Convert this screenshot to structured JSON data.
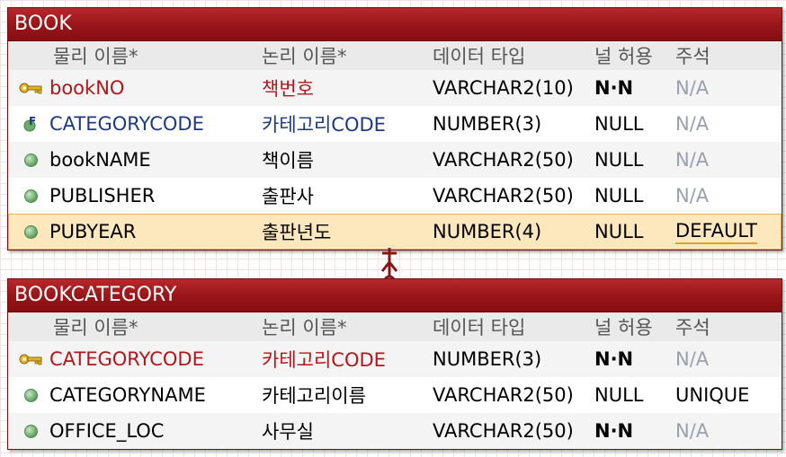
{
  "colors": {
    "title_bar": "#9a161a",
    "pk_text": "#b0171d",
    "fk_text": "#1d3a80",
    "selected_row": "#fde7bd"
  },
  "columns": [
    "물리 이름*",
    "논리 이름*",
    "데이터 타입",
    "널 허용",
    "주석"
  ],
  "entities": [
    {
      "name": "BOOK",
      "attributes": [
        {
          "physical": "bookNO",
          "logical": "책번호",
          "type": "VARCHAR2(10)",
          "nullable": "N·N",
          "note": "N/A"
        },
        {
          "physical": "CATEGORYCODE",
          "logical": "카테고리CODE",
          "type": "NUMBER(3)",
          "nullable": "NULL",
          "note": "N/A"
        },
        {
          "physical": "bookNAME",
          "logical": "책이름",
          "type": "VARCHAR2(50)",
          "nullable": "NULL",
          "note": "N/A"
        },
        {
          "physical": "PUBLISHER",
          "logical": "출판사",
          "type": "VARCHAR2(50)",
          "nullable": "NULL",
          "note": "N/A"
        },
        {
          "physical": "PUBYEAR",
          "logical": "출판년도",
          "type": "NUMBER(4)",
          "nullable": "NULL",
          "note": "DEFAULT"
        }
      ]
    },
    {
      "name": "BOOKCATEGORY",
      "attributes": [
        {
          "physical": "CATEGORYCODE",
          "logical": "카테고리CODE",
          "type": "NUMBER(3)",
          "nullable": "N·N",
          "note": "N/A"
        },
        {
          "physical": "CATEGORYNAME",
          "logical": "카테고리이름",
          "type": "VARCHAR2(50)",
          "nullable": "NULL",
          "note": "UNIQUE"
        },
        {
          "physical": "OFFICE_LOC",
          "logical": "사무실",
          "type": "VARCHAR2(50)",
          "nullable": "N·N",
          "note": "N/A"
        }
      ]
    }
  ]
}
